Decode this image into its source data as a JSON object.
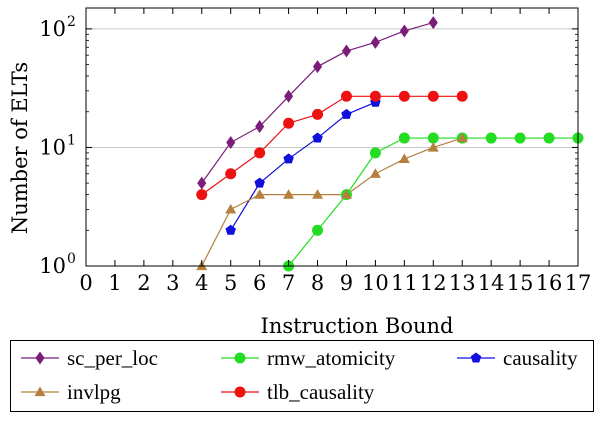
{
  "chart_data": {
    "type": "line",
    "xlabel": "Instruction Bound",
    "ylabel": "Number of ELTs",
    "yscale": "log",
    "xlim": [
      0,
      17
    ],
    "ylim": [
      1,
      150
    ],
    "x_ticks": [
      0,
      1,
      2,
      3,
      4,
      5,
      6,
      7,
      8,
      9,
      10,
      11,
      12,
      13,
      14,
      15,
      16,
      17
    ],
    "y_ticks": [
      {
        "value": 1,
        "label": "10",
        "exp": "0"
      },
      {
        "value": 10,
        "label": "10",
        "exp": "1"
      },
      {
        "value": 100,
        "label": "10",
        "exp": "2"
      }
    ],
    "grid": "horizontal-major",
    "legend_position": "bottom",
    "series": [
      {
        "name": "sc_per_loc",
        "color": "#7b1e7a",
        "marker": "diamond",
        "x": [
          4,
          5,
          6,
          7,
          8,
          9,
          10,
          11,
          12
        ],
        "y": [
          5,
          11,
          15,
          27,
          48,
          65,
          77,
          96,
          113
        ]
      },
      {
        "name": "rmw_atomicity",
        "color": "#22dd22",
        "marker": "circle",
        "x": [
          7,
          8,
          9,
          10,
          11,
          12,
          13,
          14,
          15,
          16,
          17
        ],
        "y": [
          1,
          2,
          4,
          9,
          12,
          12,
          12,
          12,
          12,
          12,
          12
        ]
      },
      {
        "name": "causality",
        "color": "#1010dd",
        "marker": "pentagon",
        "x": [
          5,
          6,
          7,
          8,
          9,
          10
        ],
        "y": [
          2,
          5,
          8,
          12,
          19,
          24
        ]
      },
      {
        "name": "invlpg",
        "color": "#b5803f",
        "marker": "triangle",
        "x": [
          4,
          5,
          6,
          7,
          8,
          9,
          10,
          11,
          12,
          13
        ],
        "y": [
          1,
          3,
          4,
          4,
          4,
          4,
          6,
          8,
          10,
          12
        ]
      },
      {
        "name": "tlb_causality",
        "color": "#ee1111",
        "marker": "circle",
        "x": [
          4,
          5,
          6,
          7,
          8,
          9,
          10,
          11,
          12,
          13
        ],
        "y": [
          4,
          6,
          9,
          16,
          19,
          27,
          27,
          27,
          27,
          27
        ]
      }
    ]
  }
}
